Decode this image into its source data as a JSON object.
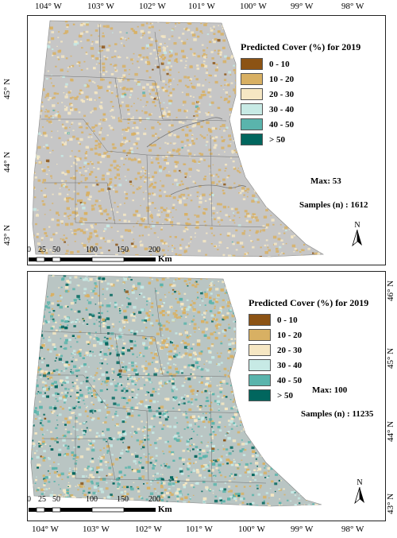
{
  "longitudes_top": [
    "104° W",
    "103° W",
    "102° W",
    "101° W",
    "100° W",
    "99° W",
    "98° W"
  ],
  "longitudes_bottom": [
    "104° W",
    "103° W",
    "102° W",
    "101° W",
    "100° W",
    "99° W",
    "98° W"
  ],
  "panel_top": {
    "latitudes": [
      "45° N",
      "44° N",
      "43° N"
    ],
    "legend_title": "Predicted Cover (%) for 2019",
    "classes": [
      {
        "label": "0 - 10",
        "color": "#8c5314"
      },
      {
        "label": "10 - 20",
        "color": "#d8b063"
      },
      {
        "label": "20 - 30",
        "color": "#f6e7c3"
      },
      {
        "label": "30 - 40",
        "color": "#c7eae5"
      },
      {
        "label": "40 - 50",
        "color": "#5ab4ac"
      },
      {
        "label": "> 50",
        "color": "#01665e"
      }
    ],
    "max": "Max: 53",
    "samples": "Samples (n) :  1612",
    "scale_numbers": [
      "0",
      "25",
      "50",
      "100",
      "150",
      "200"
    ],
    "scale_unit": "Km",
    "north": "N"
  },
  "panel_bottom": {
    "latitudes": [
      "46° N",
      "45° N",
      "44° N",
      "43° N"
    ],
    "legend_title": "Predicted Cover (%) for 2019",
    "classes": [
      {
        "label": "0 - 10",
        "color": "#8c5314"
      },
      {
        "label": "10 - 20",
        "color": "#d8b063"
      },
      {
        "label": "20 - 30",
        "color": "#f6e7c3"
      },
      {
        "label": "30 - 40",
        "color": "#c7eae5"
      },
      {
        "label": "40 - 50",
        "color": "#5ab4ac"
      },
      {
        "label": "> 50",
        "color": "#01665e"
      }
    ],
    "max": "Max: 100",
    "samples": "Samples (n) : 11235",
    "scale_numbers": [
      "0",
      "25",
      "50",
      "100",
      "150",
      "200"
    ],
    "scale_unit": "Km",
    "north": "N"
  }
}
